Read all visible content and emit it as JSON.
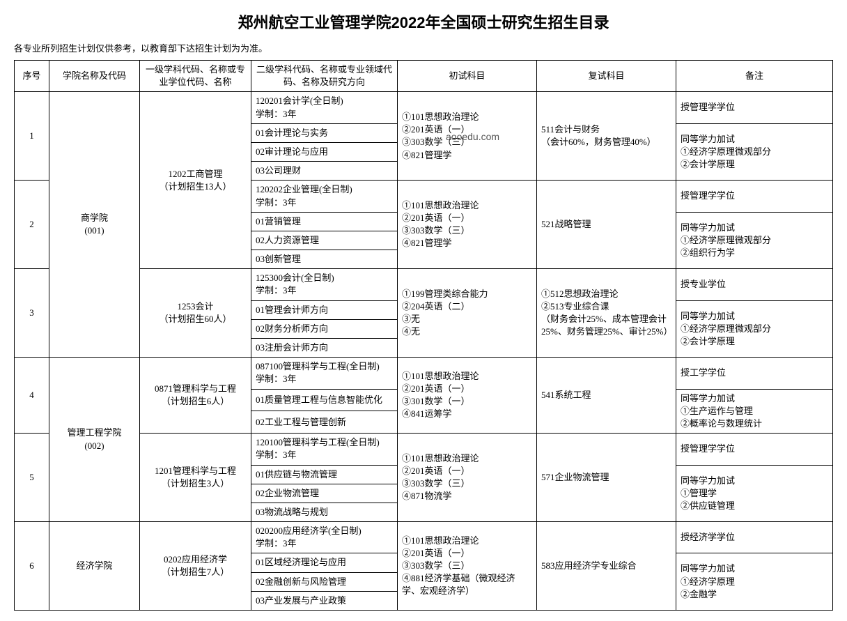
{
  "title": "郑州航空工业管理学院2022年全国硕士研究生招生目录",
  "note": "各专业所列招生计划仅供参考，以教育部下达招生计划为为准。",
  "watermark": "aooedu.com",
  "headers": {
    "seq": "序号",
    "school": "学院名称及代码",
    "l1": "一级学科代码、名称或专业学位代码、名称",
    "l2": "二级学科代码、名称或专业领域代码、名称及研究方向",
    "exam1": "初试科目",
    "exam2": "复试科目",
    "remark": "备注"
  },
  "schools": {
    "s001": "商学院\n(001)",
    "s002": "管理工程学院\n(002)",
    "s003": "经济学院"
  },
  "l1": {
    "m1202": "1202工商管理\n（计划招生13人）",
    "m1253": "1253会计\n（计划招生60人）",
    "m0871": "0871管理科学与工程\n（计划招生6人）",
    "m1201": "1201管理科学与工程\n（计划招生3人）",
    "m0202": "0202应用经济学\n（计划招生7人）"
  },
  "rows": [
    {
      "seq": "1",
      "l2": "120201会计学(全日制)\n学制：3年",
      "exam1": "①101思想政治理论\n②201英语（一）\n③303数学（三）\n④821管理学",
      "exam2": "511会计与财务\n（会计60%，财务管理40%）",
      "remark": "授管理学学位"
    },
    {
      "l2": "01会计理论与实务",
      "remark": "同等学力加试\n①经济学原理微观部分\n②会计学原理"
    },
    {
      "l2": "02审计理论与应用"
    },
    {
      "l2": "03公司理财"
    },
    {
      "seq": "2",
      "l2": "120202企业管理(全日制)\n学制：3年",
      "exam1": "①101思想政治理论\n②201英语（一）\n③303数学（三）\n④821管理学",
      "exam2": "521战略管理",
      "remark": "授管理学学位"
    },
    {
      "l2": "01营销管理",
      "remark": "同等学力加试\n①经济学原理微观部分\n②组织行为学"
    },
    {
      "l2": "02人力资源管理"
    },
    {
      "l2": "03创新管理"
    },
    {
      "seq": "3",
      "l2": "125300会计(全日制)\n学制：3年",
      "exam1": "①199管理类综合能力\n②204英语（二）\n③无\n④无",
      "exam2": "①512思想政治理论\n②513专业综合课\n（财务会计25%、成本管理会计25%、财务管理25%、审计25%）",
      "remark": "授专业学位"
    },
    {
      "l2": "01管理会计师方向",
      "remark": "同等学力加试\n①经济学原理微观部分\n②会计学原理"
    },
    {
      "l2": "02财务分析师方向"
    },
    {
      "l2": "03注册会计师方向"
    },
    {
      "seq": "4",
      "l2": "087100管理科学与工程(全日制)\n学制：3年",
      "exam1": "①101思想政治理论\n②201英语（一）\n③301数学（一）\n④841运筹学",
      "exam2": "541系统工程",
      "remark": "授工学学位"
    },
    {
      "l2": "01质量管理工程与信息智能优化",
      "remark": "同等学力加试\n①生产运作与管理\n②概率论与数理统计"
    },
    {
      "l2": "02工业工程与管理创新"
    },
    {
      "seq": "5",
      "l2": "120100管理科学与工程(全日制)\n学制：3年",
      "exam1": "①101思想政治理论\n②201英语（一）\n③303数学（三）\n④871物流学",
      "exam2": "571企业物流管理",
      "remark": "授管理学学位"
    },
    {
      "l2": "01供应链与物流管理",
      "remark": "同等学力加试\n①管理学\n②供应链管理"
    },
    {
      "l2": "02企业物流管理"
    },
    {
      "l2": "03物流战略与规划"
    },
    {
      "seq": "6",
      "l2": "020200应用经济学(全日制)\n学制：3年",
      "exam1": "①101思想政治理论\n②201英语（一）\n③303数学（三）\n④881经济学基础（微观经济学、宏观经济学）",
      "exam2": "583应用经济学专业综合",
      "remark": "授经济学学位"
    },
    {
      "l2": "01区域经济理论与应用",
      "remark": "同等学力加试\n①经济学原理\n②金融学"
    },
    {
      "l2": "02金融创新与风险管理"
    },
    {
      "l2": "03产业发展与产业政策"
    }
  ]
}
